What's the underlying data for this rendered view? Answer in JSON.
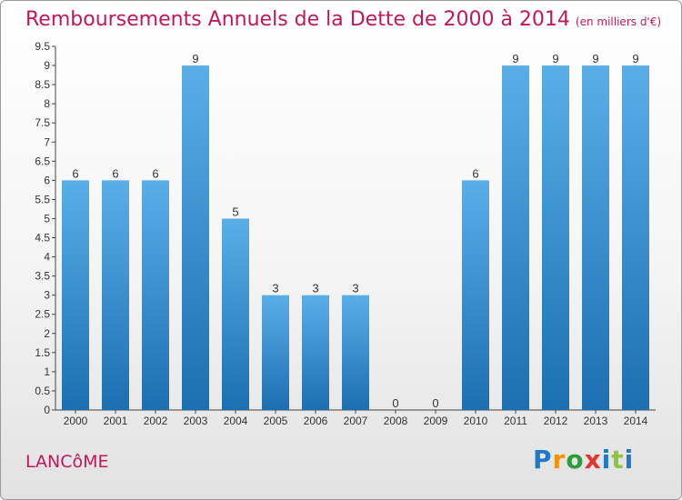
{
  "title": "Remboursements Annuels de la Dette de 2000 à 2014",
  "unit": "(en milliers d'€)",
  "town": "LANCôME",
  "brand": [
    "P",
    "r",
    "o",
    "x",
    "i",
    "t",
    "i"
  ],
  "colors": {
    "bar_light": "#5aaee8",
    "bar_dark": "#1c6fb0",
    "title": "#c2185b"
  },
  "chart_data": {
    "type": "bar",
    "categories": [
      "2000",
      "2001",
      "2002",
      "2003",
      "2004",
      "2005",
      "2006",
      "2007",
      "2008",
      "2009",
      "2010",
      "2011",
      "2012",
      "2013",
      "2014"
    ],
    "values": [
      6,
      6,
      6,
      9,
      5,
      3,
      3,
      3,
      0,
      0,
      6,
      9,
      9,
      9,
      9
    ],
    "data_labels": [
      "6",
      "6",
      "6",
      "9",
      "5",
      "3",
      "3",
      "3",
      "0",
      "0",
      "6",
      "9",
      "9",
      "9",
      "9"
    ],
    "y_ticks": [
      "0",
      "0.5",
      "1",
      "1.5",
      "2",
      "2.5",
      "3",
      "3.5",
      "4",
      "4.5",
      "5",
      "5.5",
      "6",
      "6.5",
      "7",
      "7.5",
      "8",
      "8.5",
      "9",
      "9.5"
    ],
    "ylim": [
      0,
      9.5
    ],
    "grid": false,
    "title": "Remboursements Annuels de la Dette de 2000 à 2014",
    "xlabel": "",
    "ylabel": ""
  }
}
